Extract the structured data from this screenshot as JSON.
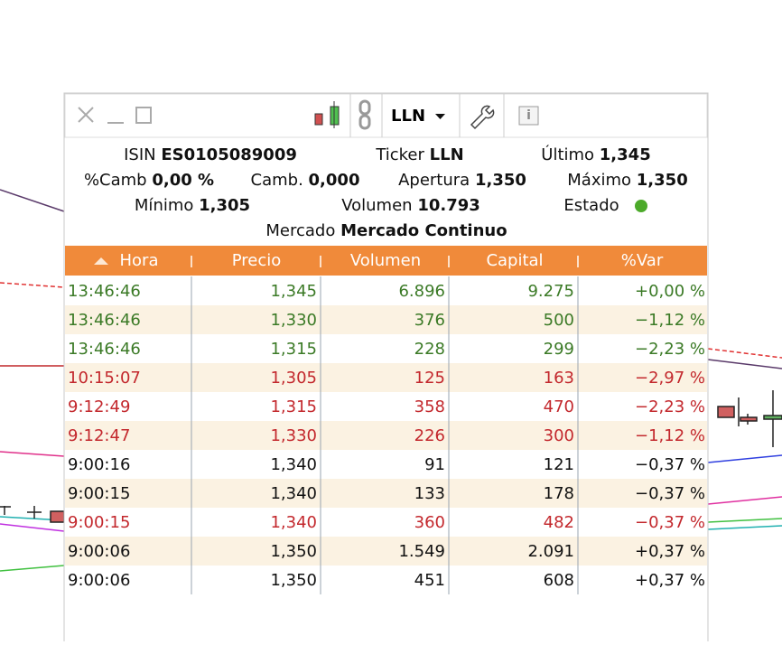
{
  "toolbar": {
    "ticker": "LLN"
  },
  "info": [
    [
      {
        "label": "ISIN",
        "value": "ES0105089009"
      },
      {
        "label": "Ticker",
        "value": "LLN"
      },
      {
        "label": "Último",
        "value": "1,345"
      }
    ],
    [
      {
        "label": "%Camb",
        "value": "0,00 %"
      },
      {
        "label": "Camb.",
        "value": "0,000"
      },
      {
        "label": "Apertura",
        "value": "1,350"
      },
      {
        "label": "Máximo",
        "value": "1,350"
      }
    ],
    [
      {
        "label": "Mínimo",
        "value": "1,305"
      },
      {
        "label": "Volumen",
        "value": "10.793"
      },
      {
        "label": "Estado"
      }
    ],
    [
      {
        "label": "Mercado",
        "value": "Mercado Continuo"
      }
    ]
  ],
  "table": {
    "headers": [
      "Hora",
      "Precio",
      "Volumen",
      "Capital",
      "%Var"
    ],
    "rows": [
      {
        "color": "#3b7a26",
        "cells": [
          "13:46:46",
          "1,345",
          "6.896",
          "9.275",
          "+0,00 %"
        ]
      },
      {
        "color": "#3b7a26",
        "cells": [
          "13:46:46",
          "1,330",
          "376",
          "500",
          "−1,12 %"
        ]
      },
      {
        "color": "#3b7a26",
        "cells": [
          "13:46:46",
          "1,315",
          "228",
          "299",
          "−2,23 %"
        ]
      },
      {
        "color": "#c3282d",
        "cells": [
          "10:15:07",
          "1,305",
          "125",
          "163",
          "−2,97 %"
        ]
      },
      {
        "color": "#c3282d",
        "cells": [
          "9:12:49",
          "1,315",
          "358",
          "470",
          "−2,23 %"
        ]
      },
      {
        "color": "#c3282d",
        "cells": [
          "9:12:47",
          "1,330",
          "226",
          "300",
          "−1,12 %"
        ]
      },
      {
        "color": "#111111",
        "cells": [
          "9:00:16",
          "1,340",
          "91",
          "121",
          "−0,37 %"
        ]
      },
      {
        "color": "#111111",
        "cells": [
          "9:00:15",
          "1,340",
          "133",
          "178",
          "−0,37 %"
        ]
      },
      {
        "color": "#c3282d",
        "cells": [
          "9:00:15",
          "1,340",
          "360",
          "482",
          "−0,37 %"
        ]
      },
      {
        "color": "#111111",
        "cells": [
          "9:00:06",
          "1,350",
          "1.549",
          "2.091",
          "+0,37 %"
        ]
      },
      {
        "color": "#111111",
        "cells": [
          "9:00:06",
          "1,350",
          "451",
          "608",
          "+0,37 %"
        ]
      }
    ]
  }
}
